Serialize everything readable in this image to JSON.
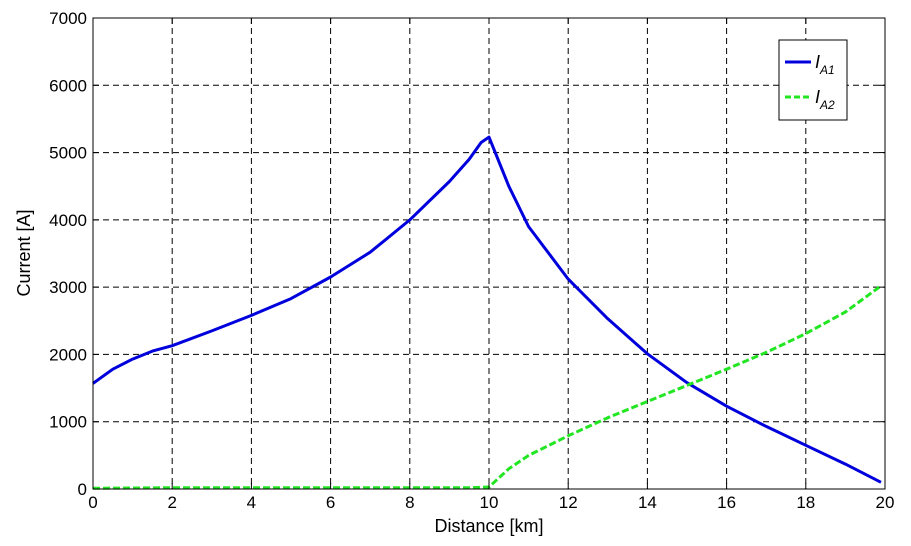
{
  "chart_data": {
    "type": "line",
    "xlabel": "Distance [km]",
    "ylabel": "Current [A]",
    "xlim": [
      0,
      20
    ],
    "ylim": [
      0,
      7000
    ],
    "xticks": [
      0,
      2,
      4,
      6,
      8,
      10,
      12,
      14,
      16,
      18,
      20
    ],
    "yticks": [
      0,
      1000,
      2000,
      3000,
      4000,
      5000,
      6000,
      7000
    ],
    "grid": true,
    "legend_position": "top-right",
    "series": [
      {
        "name": "I_A1",
        "label_main": "I",
        "label_sub": "A1",
        "color": "#0000dd",
        "style": "solid",
        "x": [
          0,
          0.5,
          1,
          1.5,
          2,
          3,
          4,
          5,
          6,
          7,
          8,
          9,
          9.5,
          9.8,
          10,
          10.5,
          11,
          12,
          13,
          14,
          15,
          16,
          17,
          18,
          19,
          19.9
        ],
        "y": [
          1570,
          1780,
          1930,
          2050,
          2130,
          2350,
          2580,
          2830,
          3150,
          3520,
          4000,
          4570,
          4900,
          5150,
          5230,
          4500,
          3900,
          3120,
          2530,
          2010,
          1580,
          1230,
          930,
          650,
          370,
          100
        ]
      },
      {
        "name": "I_A2",
        "label_main": "I",
        "label_sub": "A2",
        "color": "#22e622",
        "style": "dashed",
        "x": [
          0,
          2,
          4,
          6,
          8,
          9.5,
          10,
          10.5,
          11,
          12,
          13,
          14,
          15,
          16,
          17,
          18,
          19,
          19.9
        ],
        "y": [
          10,
          20,
          20,
          20,
          20,
          20,
          30,
          300,
          500,
          790,
          1060,
          1300,
          1540,
          1780,
          2030,
          2310,
          2630,
          3020
        ]
      }
    ]
  }
}
